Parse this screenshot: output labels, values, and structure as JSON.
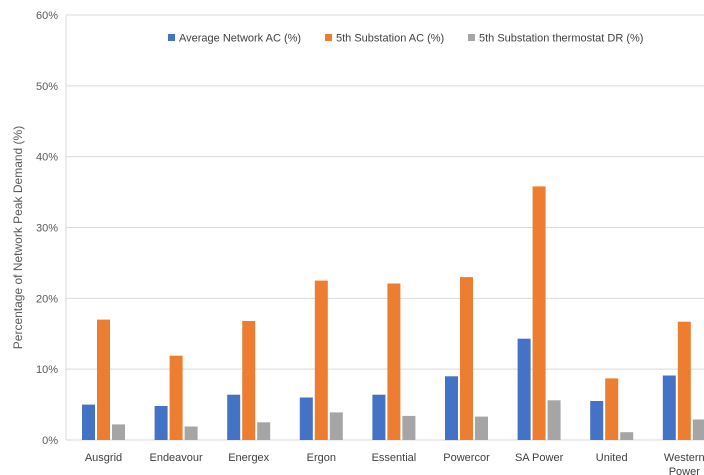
{
  "chart_data": {
    "type": "bar",
    "categories": [
      "Ausgrid",
      "Endeavour",
      "Energex",
      "Ergon",
      "Essential",
      "Powercor",
      "SA Power",
      "United",
      "Western Power"
    ],
    "series": [
      {
        "name": "Average Network AC (%)",
        "color": "#4472C4",
        "values": [
          5.0,
          4.8,
          6.4,
          6.0,
          6.4,
          9.0,
          14.3,
          5.5,
          9.1
        ]
      },
      {
        "name": "5th Substation AC (%)",
        "color": "#ED7D31",
        "values": [
          17.0,
          11.9,
          16.8,
          22.5,
          22.1,
          23.0,
          35.8,
          8.7,
          16.7
        ]
      },
      {
        "name": "5th Substation thermostat DR (%)",
        "color": "#A5A5A5",
        "values": [
          2.2,
          1.9,
          2.5,
          3.9,
          3.4,
          3.3,
          5.6,
          1.1,
          2.9
        ]
      }
    ],
    "ylabel": "Percentage of Network Peak Demand (%)",
    "xlabel": "",
    "ylim": [
      0,
      60
    ],
    "yticks": [
      "0%",
      "10%",
      "20%",
      "30%",
      "40%",
      "50%",
      "60%"
    ],
    "grid": true,
    "legend_position": "top"
  }
}
